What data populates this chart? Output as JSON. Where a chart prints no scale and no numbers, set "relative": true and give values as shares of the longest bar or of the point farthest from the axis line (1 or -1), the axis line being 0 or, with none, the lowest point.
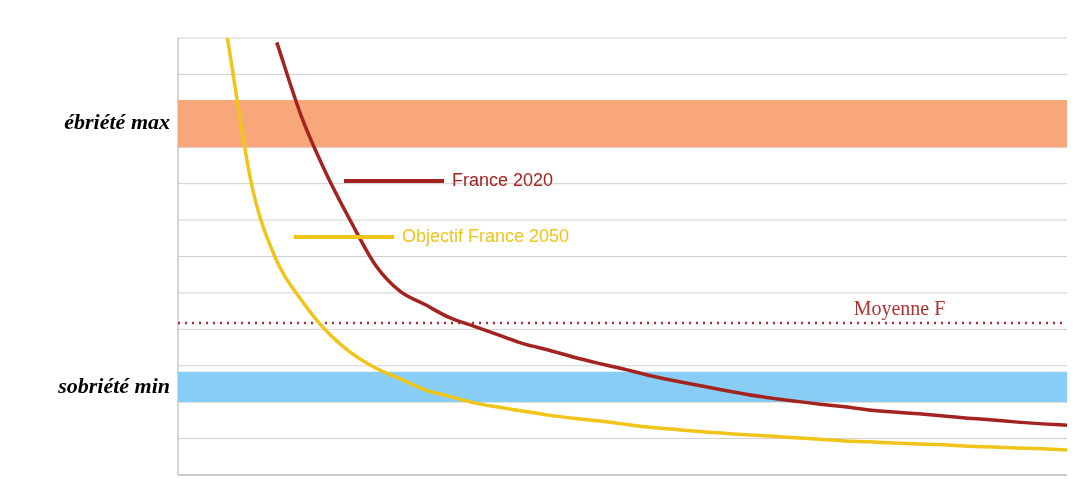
{
  "chart_data": {
    "type": "line",
    "relative": true,
    "categories": [
      null,
      null,
      null,
      null,
      null,
      null,
      null,
      null,
      null,
      null,
      null,
      null,
      null,
      null,
      null,
      null,
      null,
      null,
      null,
      null,
      null,
      null,
      null,
      null,
      null,
      null,
      null,
      null,
      null,
      null,
      null,
      null,
      null,
      null,
      null,
      null,
      null
    ],
    "series": [
      {
        "name": "France 2020",
        "color": "#a3231f",
        "values": [
          null,
          null,
          null,
          null,
          0.99,
          0.82,
          0.69,
          0.58,
          0.48,
          0.42,
          0.39,
          0.36,
          0.34,
          0.32,
          0.3,
          0.286,
          0.27,
          0.256,
          0.243,
          0.229,
          0.217,
          0.206,
          0.195,
          0.185,
          0.176,
          0.169,
          0.162,
          0.156,
          0.149,
          0.144,
          0.14,
          0.135,
          0.13,
          0.126,
          0.121,
          0.117,
          0.114
        ]
      },
      {
        "name": "Objectif France 2050",
        "color": "#f0c419",
        "values": [
          null,
          null,
          1.0,
          0.66,
          0.49,
          0.4,
          0.33,
          0.28,
          0.245,
          0.22,
          0.195,
          0.18,
          0.165,
          0.155,
          0.146,
          0.137,
          0.13,
          0.124,
          0.117,
          0.11,
          0.105,
          0.1,
          0.096,
          0.092,
          0.089,
          0.085,
          0.082,
          0.078,
          0.076,
          0.073,
          0.071,
          0.069,
          0.066,
          0.064,
          0.062,
          0.06,
          0.057
        ]
      }
    ],
    "ref_lines": [
      {
        "axis": "y",
        "value": 0.348,
        "label": "Moyenne F",
        "color": "#b03030",
        "line_style": "dotted"
      }
    ],
    "bands": [
      {
        "axis": "y",
        "from": 0.75,
        "to": 0.858,
        "label": "ébriété max",
        "color": "#f8a77a"
      },
      {
        "axis": "y",
        "from": 0.167,
        "to": 0.236,
        "label": "sobriété min",
        "color": "#87cdf5"
      }
    ],
    "grid": "y",
    "legend": "top left",
    "marker": "none",
    "line_style": "solid"
  }
}
